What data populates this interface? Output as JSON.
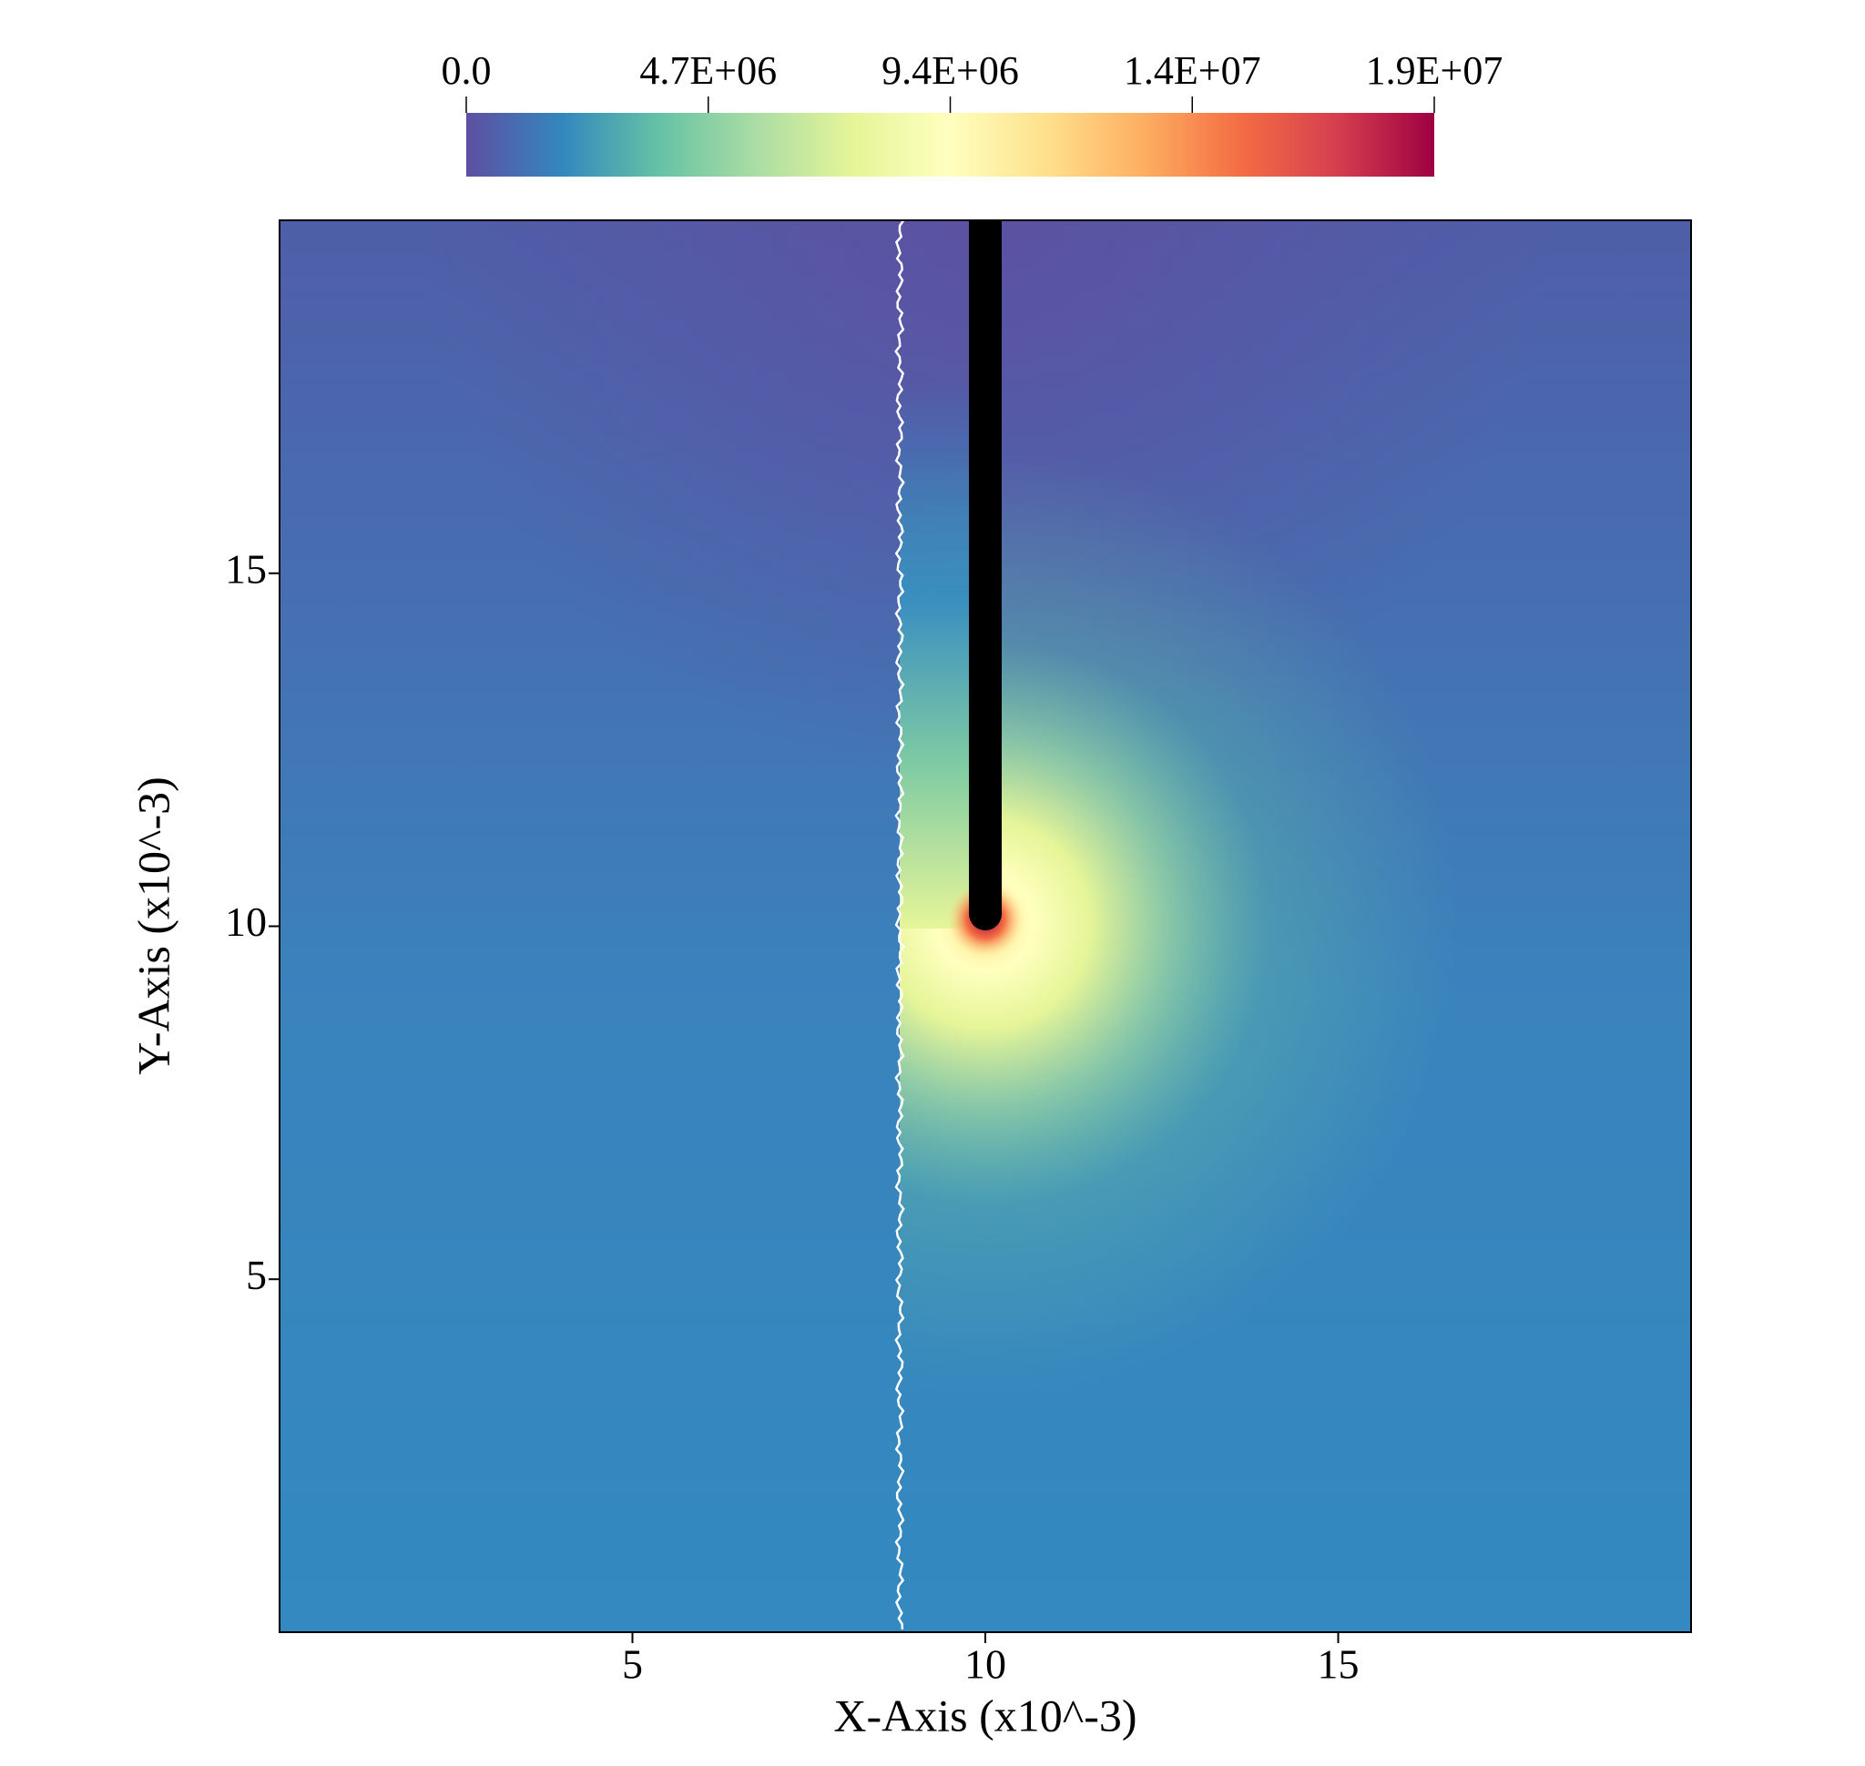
{
  "chart_data": {
    "type": "field",
    "xlabel": "X-Axis (x10^-3)",
    "ylabel": "Y-Axis (x10^-3)",
    "xlim": [
      0,
      20
    ],
    "ylim": [
      0,
      20
    ],
    "xticks": [
      5,
      10,
      15
    ],
    "yticks": [
      5,
      10,
      15
    ],
    "colorbar": {
      "clim": [
        0,
        18800000
      ],
      "ticks": [
        {
          "value": 0,
          "label": "0.0"
        },
        {
          "value": 4700000,
          "label": "4.7E+06"
        },
        {
          "value": 9400000,
          "label": "9.4E+06"
        },
        {
          "value": 14100000,
          "label": "1.4E+07"
        },
        {
          "value": 18800000,
          "label": "1.9E+07"
        }
      ],
      "colormap": [
        "#5e4fa2",
        "#3288bd",
        "#66c2a5",
        "#abdda4",
        "#e6f598",
        "#ffffbf",
        "#fee08b",
        "#fdae61",
        "#f46d43",
        "#d53e4f",
        "#9e0142"
      ]
    }
  }
}
